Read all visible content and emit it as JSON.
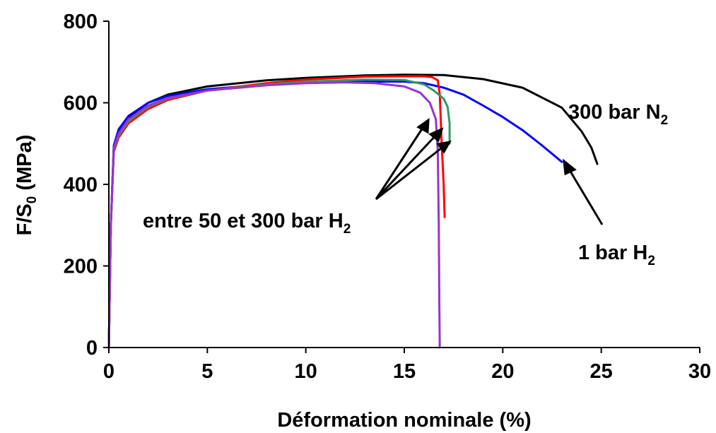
{
  "chart_data": {
    "type": "line",
    "xlabel": "Déformation nominale (%)",
    "ylabel": {
      "main": "F/S",
      "sub": "0",
      "rest": " (MPa)"
    },
    "xlim": [
      0,
      30
    ],
    "ylim": [
      0,
      800
    ],
    "xticks": [
      "0",
      "5",
      "10",
      "15",
      "20",
      "25",
      "30"
    ],
    "yticks": [
      "0",
      "200",
      "400",
      "600",
      "800"
    ],
    "grid": false,
    "series": [
      {
        "color": "#000000",
        "points": [
          [
            0,
            0
          ],
          [
            0.1,
            300
          ],
          [
            0.25,
            490
          ],
          [
            0.5,
            530
          ],
          [
            1,
            565
          ],
          [
            2,
            600
          ],
          [
            3,
            620
          ],
          [
            5,
            640
          ],
          [
            8,
            655
          ],
          [
            10,
            661
          ],
          [
            13,
            667
          ],
          [
            15,
            669
          ],
          [
            17,
            668
          ],
          [
            19,
            658
          ],
          [
            21,
            637
          ],
          [
            23,
            588
          ],
          [
            24,
            530
          ],
          [
            24.5,
            490
          ],
          [
            24.8,
            450
          ]
        ]
      },
      {
        "color": "#0000ff",
        "points": [
          [
            0,
            0
          ],
          [
            0.1,
            300
          ],
          [
            0.25,
            495
          ],
          [
            0.5,
            535
          ],
          [
            1,
            568
          ],
          [
            2,
            600
          ],
          [
            3,
            617
          ],
          [
            5,
            633
          ],
          [
            8,
            645
          ],
          [
            10,
            649
          ],
          [
            13,
            652
          ],
          [
            15,
            652
          ],
          [
            16,
            648
          ],
          [
            17,
            637
          ],
          [
            18,
            620
          ],
          [
            19,
            593
          ],
          [
            20,
            565
          ],
          [
            21,
            533
          ],
          [
            22,
            495
          ],
          [
            23,
            455
          ]
        ]
      },
      {
        "color": "#ff0000",
        "points": [
          [
            0,
            0
          ],
          [
            0.1,
            300
          ],
          [
            0.25,
            480
          ],
          [
            0.5,
            515
          ],
          [
            1,
            550
          ],
          [
            2,
            585
          ],
          [
            3,
            607
          ],
          [
            5,
            630
          ],
          [
            8,
            648
          ],
          [
            10,
            657
          ],
          [
            13,
            664
          ],
          [
            15,
            665
          ],
          [
            16,
            665
          ],
          [
            16.4,
            663
          ],
          [
            16.7,
            655
          ],
          [
            16.8,
            620
          ],
          [
            16.9,
            500
          ],
          [
            17.0,
            400
          ],
          [
            17.05,
            320
          ]
        ]
      },
      {
        "color": "#339966",
        "points": [
          [
            0,
            0
          ],
          [
            0.1,
            300
          ],
          [
            0.25,
            485
          ],
          [
            0.5,
            520
          ],
          [
            1,
            555
          ],
          [
            2,
            590
          ],
          [
            3,
            610
          ],
          [
            5,
            630
          ],
          [
            8,
            645
          ],
          [
            10,
            652
          ],
          [
            13,
            657
          ],
          [
            15,
            656
          ],
          [
            16,
            645
          ],
          [
            16.5,
            630
          ],
          [
            17,
            610
          ],
          [
            17.2,
            590
          ],
          [
            17.3,
            550
          ],
          [
            17.3,
            500
          ]
        ]
      },
      {
        "color": "#9933cc",
        "points": [
          [
            0,
            0
          ],
          [
            0.1,
            300
          ],
          [
            0.25,
            490
          ],
          [
            0.5,
            525
          ],
          [
            1,
            560
          ],
          [
            2,
            593
          ],
          [
            3,
            612
          ],
          [
            5,
            630
          ],
          [
            8,
            643
          ],
          [
            10,
            648
          ],
          [
            12,
            650
          ],
          [
            13.5,
            648
          ],
          [
            15,
            640
          ],
          [
            15.8,
            625
          ],
          [
            16.3,
            600
          ],
          [
            16.6,
            560
          ],
          [
            16.7,
            480
          ],
          [
            16.75,
            300
          ],
          [
            16.78,
            100
          ],
          [
            16.8,
            0
          ]
        ]
      }
    ],
    "annotations": [
      {
        "id": "n2",
        "text": "300 bar N",
        "sub": "2"
      },
      {
        "id": "h1",
        "text": "1 bar H",
        "sub": "2"
      },
      {
        "id": "hrange",
        "text": "entre 50 et 300 bar H",
        "sub": "2"
      }
    ]
  }
}
